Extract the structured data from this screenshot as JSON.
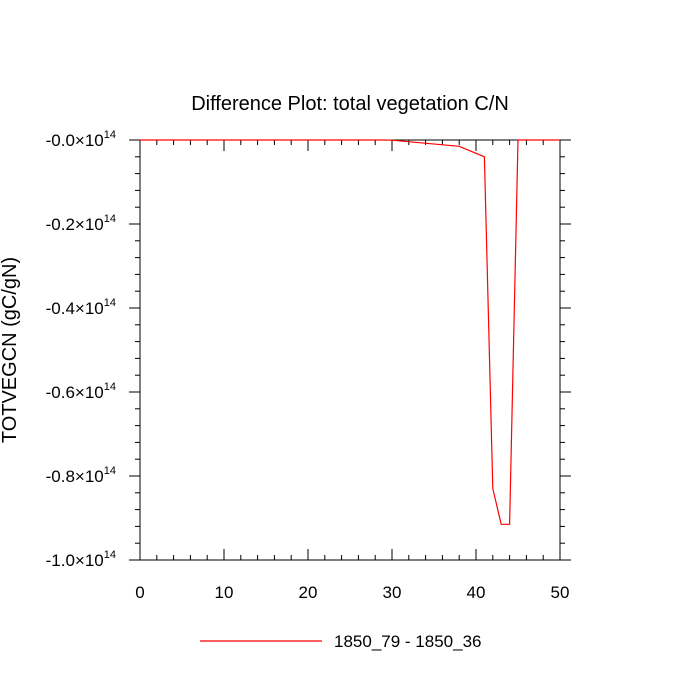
{
  "chart_data": {
    "type": "line",
    "title": "Difference Plot: total vegetation C/N",
    "xlabel": "",
    "ylabel": "TOTVEGCN  (gC/gN)",
    "xlim": [
      0,
      50
    ],
    "ylim": [
      -100000000000000.0,
      0
    ],
    "x_ticks": [
      0,
      10,
      20,
      30,
      40,
      50
    ],
    "x_tick_labels": [
      "0",
      "10",
      "20",
      "30",
      "40",
      "50"
    ],
    "y_ticks": [
      0,
      -20000000000000.0,
      -40000000000000.0,
      -60000000000000.0,
      -80000000000000.0,
      -100000000000000.0
    ],
    "y_tick_mantissas": [
      "-0.0",
      "-0.2",
      "-0.4",
      "-0.6",
      "-0.8",
      "-1.0"
    ],
    "y_tick_multiplier": "×10",
    "y_tick_exponent": "14",
    "grid": false,
    "legend_position": "bottom-center",
    "series": [
      {
        "name": "1850_79 - 1850_36",
        "color": "#ff0000",
        "x": [
          0,
          10,
          20,
          29,
          30,
          38,
          41,
          42,
          43,
          44,
          45,
          50
        ],
        "y": [
          0,
          0,
          0,
          0,
          -50000000000.0,
          -1500000000000.0,
          -4000000000000.0,
          -83000000000000.0,
          -91500000000000.0,
          -91500000000000.0,
          0,
          0
        ]
      }
    ]
  }
}
